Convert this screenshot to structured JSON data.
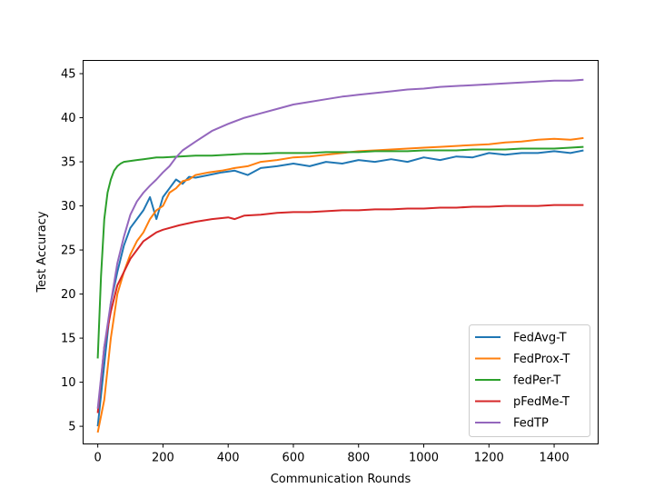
{
  "chart_data": {
    "type": "line",
    "title": "",
    "xlabel": "Communication Rounds",
    "ylabel": "Test Accuracy",
    "xlim": [
      -45,
      1535
    ],
    "ylim": [
      3,
      46.5
    ],
    "xticks": [
      0,
      200,
      400,
      600,
      800,
      1000,
      1200,
      1400
    ],
    "yticks": [
      5,
      10,
      15,
      20,
      25,
      30,
      35,
      40,
      45
    ],
    "grid": false,
    "legend_position": "bottom-right",
    "series": [
      {
        "name": "FedAvg-T",
        "color": "#1f77b4",
        "x": [
          0,
          20,
          40,
          60,
          80,
          100,
          120,
          140,
          160,
          180,
          200,
          220,
          240,
          260,
          280,
          300,
          340,
          380,
          420,
          460,
          500,
          550,
          600,
          650,
          700,
          750,
          800,
          850,
          900,
          950,
          1000,
          1050,
          1100,
          1150,
          1200,
          1250,
          1300,
          1350,
          1400,
          1450,
          1490
        ],
        "y": [
          5.0,
          12.0,
          19.0,
          22.5,
          25.5,
          27.5,
          28.5,
          29.5,
          31.0,
          28.5,
          31.0,
          32.0,
          33.0,
          32.5,
          33.3,
          33.2,
          33.5,
          33.8,
          34.0,
          33.5,
          34.3,
          34.5,
          34.8,
          34.5,
          35.0,
          34.8,
          35.2,
          35.0,
          35.3,
          35.0,
          35.5,
          35.2,
          35.6,
          35.5,
          36.0,
          35.8,
          36.0,
          36.0,
          36.2,
          36.0,
          36.3
        ]
      },
      {
        "name": "FedProx-T",
        "color": "#ff7f0e",
        "x": [
          0,
          20,
          40,
          60,
          80,
          100,
          120,
          140,
          160,
          180,
          200,
          220,
          240,
          260,
          280,
          300,
          340,
          380,
          420,
          460,
          500,
          550,
          600,
          650,
          700,
          750,
          800,
          850,
          900,
          950,
          1000,
          1050,
          1100,
          1150,
          1200,
          1250,
          1300,
          1350,
          1400,
          1450,
          1490
        ],
        "y": [
          4.3,
          8.0,
          15.0,
          20.0,
          22.5,
          24.5,
          26.0,
          27.0,
          28.5,
          29.5,
          30.0,
          31.5,
          32.0,
          32.8,
          33.0,
          33.5,
          33.8,
          34.0,
          34.3,
          34.5,
          35.0,
          35.2,
          35.5,
          35.6,
          35.8,
          36.0,
          36.2,
          36.3,
          36.4,
          36.5,
          36.6,
          36.7,
          36.8,
          36.9,
          37.0,
          37.2,
          37.3,
          37.5,
          37.6,
          37.5,
          37.7
        ]
      },
      {
        "name": "fedPer-T",
        "color": "#2ca02c",
        "x": [
          0,
          10,
          20,
          30,
          40,
          50,
          60,
          70,
          80,
          100,
          120,
          140,
          160,
          180,
          200,
          250,
          300,
          350,
          400,
          450,
          500,
          550,
          600,
          650,
          700,
          750,
          800,
          850,
          900,
          950,
          1000,
          1050,
          1100,
          1150,
          1200,
          1250,
          1300,
          1350,
          1400,
          1450,
          1490
        ],
        "y": [
          12.7,
          22.0,
          28.5,
          31.5,
          33.0,
          34.0,
          34.5,
          34.8,
          35.0,
          35.1,
          35.2,
          35.3,
          35.4,
          35.5,
          35.5,
          35.6,
          35.7,
          35.7,
          35.8,
          35.9,
          35.9,
          36.0,
          36.0,
          36.0,
          36.1,
          36.1,
          36.1,
          36.2,
          36.2,
          36.2,
          36.3,
          36.3,
          36.3,
          36.4,
          36.4,
          36.4,
          36.5,
          36.5,
          36.5,
          36.6,
          36.7
        ]
      },
      {
        "name": "pFedMe-T",
        "color": "#d62728",
        "x": [
          0,
          20,
          40,
          60,
          80,
          100,
          120,
          140,
          160,
          180,
          200,
          250,
          300,
          350,
          400,
          420,
          450,
          500,
          550,
          600,
          650,
          700,
          750,
          800,
          850,
          900,
          950,
          1000,
          1050,
          1100,
          1150,
          1200,
          1250,
          1300,
          1350,
          1400,
          1450,
          1490
        ],
        "y": [
          6.5,
          14.0,
          18.0,
          21.0,
          22.5,
          24.0,
          25.0,
          26.0,
          26.5,
          27.0,
          27.3,
          27.8,
          28.2,
          28.5,
          28.7,
          28.5,
          28.9,
          29.0,
          29.2,
          29.3,
          29.3,
          29.4,
          29.5,
          29.5,
          29.6,
          29.6,
          29.7,
          29.7,
          29.8,
          29.8,
          29.9,
          29.9,
          30.0,
          30.0,
          30.0,
          30.1,
          30.1,
          30.1
        ]
      },
      {
        "name": "FedTP",
        "color": "#9467bd",
        "x": [
          0,
          20,
          40,
          60,
          80,
          100,
          120,
          140,
          160,
          180,
          200,
          220,
          240,
          260,
          300,
          350,
          400,
          450,
          500,
          550,
          600,
          650,
          700,
          750,
          800,
          850,
          900,
          950,
          1000,
          1050,
          1100,
          1150,
          1200,
          1250,
          1300,
          1350,
          1400,
          1450,
          1490
        ],
        "y": [
          7.0,
          14.0,
          19.0,
          23.5,
          26.5,
          29.0,
          30.5,
          31.5,
          32.3,
          33.0,
          33.8,
          34.5,
          35.5,
          36.3,
          37.3,
          38.5,
          39.3,
          40.0,
          40.5,
          41.0,
          41.5,
          41.8,
          42.1,
          42.4,
          42.6,
          42.8,
          43.0,
          43.2,
          43.3,
          43.5,
          43.6,
          43.7,
          43.8,
          43.9,
          44.0,
          44.1,
          44.2,
          44.2,
          44.3
        ]
      }
    ]
  }
}
